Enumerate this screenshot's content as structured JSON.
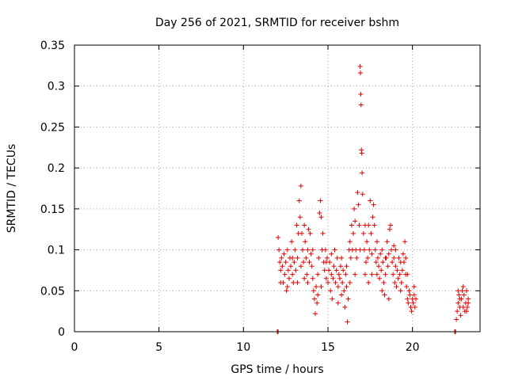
{
  "chart_data": {
    "type": "scatter",
    "title": "Day 256 of 2021, SRMTID for receiver bshm",
    "xlabel": "GPS time / hours",
    "ylabel": "SRMTID / TECUs",
    "xlim": [
      0,
      24
    ],
    "ylim": [
      0,
      0.35
    ],
    "xticks": [
      0,
      5,
      10,
      15,
      20
    ],
    "xtick_labels": [
      "0",
      "5",
      "10",
      "15",
      "20"
    ],
    "yticks": [
      0,
      0.05,
      0.1,
      0.15,
      0.2,
      0.25,
      0.3,
      0.35
    ],
    "ytick_labels": [
      "0",
      "0.05",
      "0.1",
      "0.15",
      "0.2",
      "0.25",
      "0.3",
      "0.35"
    ],
    "grid": true,
    "marker": "+",
    "color": "#e00000",
    "series": [
      {
        "name": "SRMTID",
        "points": [
          [
            12.0,
            0.0
          ],
          [
            12.05,
            0.0
          ],
          [
            22.5,
            0.0
          ],
          [
            22.55,
            0.0
          ],
          [
            12.05,
            0.115
          ],
          [
            12.1,
            0.1
          ],
          [
            12.15,
            0.085
          ],
          [
            12.2,
            0.075
          ],
          [
            12.25,
            0.09
          ],
          [
            12.3,
            0.08
          ],
          [
            12.35,
            0.06
          ],
          [
            12.4,
            0.095
          ],
          [
            12.45,
            0.07
          ],
          [
            12.5,
            0.085
          ],
          [
            12.55,
            0.05
          ],
          [
            12.6,
            0.1
          ],
          [
            12.65,
            0.075
          ],
          [
            12.7,
            0.065
          ],
          [
            12.75,
            0.09
          ],
          [
            12.8,
            0.08
          ],
          [
            12.85,
            0.11
          ],
          [
            12.9,
            0.07
          ],
          [
            12.95,
            0.06
          ],
          [
            13.0,
            0.085
          ],
          [
            13.05,
            0.1
          ],
          [
            13.1,
            0.075
          ],
          [
            13.15,
            0.13
          ],
          [
            13.2,
            0.09
          ],
          [
            13.25,
            0.12
          ],
          [
            13.3,
            0.16
          ],
          [
            13.35,
            0.14
          ],
          [
            13.4,
            0.178
          ],
          [
            13.45,
            0.12
          ],
          [
            13.5,
            0.1
          ],
          [
            13.55,
            0.085
          ],
          [
            13.6,
            0.13
          ],
          [
            13.65,
            0.11
          ],
          [
            13.7,
            0.09
          ],
          [
            13.75,
            0.07
          ],
          [
            13.8,
            0.1
          ],
          [
            13.85,
            0.125
          ],
          [
            13.9,
            0.085
          ],
          [
            13.95,
            0.12
          ],
          [
            14.0,
            0.095
          ],
          [
            14.05,
            0.08
          ],
          [
            14.1,
            0.065
          ],
          [
            14.15,
            0.05
          ],
          [
            14.2,
            0.04
          ],
          [
            14.25,
            0.022
          ],
          [
            14.3,
            0.055
          ],
          [
            14.35,
            0.035
          ],
          [
            14.4,
            0.07
          ],
          [
            14.45,
            0.09
          ],
          [
            14.5,
            0.145
          ],
          [
            14.55,
            0.16
          ],
          [
            14.6,
            0.14
          ],
          [
            14.65,
            0.1
          ],
          [
            14.7,
            0.12
          ],
          [
            14.75,
            0.085
          ],
          [
            14.8,
            0.075
          ],
          [
            14.85,
            0.1
          ],
          [
            14.9,
            0.065
          ],
          [
            14.95,
            0.09
          ],
          [
            15.0,
            0.06
          ],
          [
            15.05,
            0.075
          ],
          [
            15.1,
            0.085
          ],
          [
            15.15,
            0.05
          ],
          [
            15.2,
            0.07
          ],
          [
            15.25,
            0.04
          ],
          [
            15.3,
            0.065
          ],
          [
            15.35,
            0.08
          ],
          [
            15.4,
            0.1
          ],
          [
            15.45,
            0.06
          ],
          [
            15.5,
            0.075
          ],
          [
            15.55,
            0.09
          ],
          [
            15.6,
            0.055
          ],
          [
            15.65,
            0.07
          ],
          [
            15.7,
            0.065
          ],
          [
            15.75,
            0.08
          ],
          [
            15.8,
            0.045
          ],
          [
            15.85,
            0.06
          ],
          [
            15.9,
            0.075
          ],
          [
            15.95,
            0.05
          ],
          [
            16.0,
            0.03
          ],
          [
            16.05,
            0.07
          ],
          [
            16.1,
            0.055
          ],
          [
            16.15,
            0.012
          ],
          [
            16.2,
            0.04
          ],
          [
            16.25,
            0.1
          ],
          [
            16.3,
            0.11
          ],
          [
            16.35,
            0.09
          ],
          [
            16.4,
            0.13
          ],
          [
            16.45,
            0.1
          ],
          [
            16.5,
            0.12
          ],
          [
            16.55,
            0.15
          ],
          [
            16.6,
            0.135
          ],
          [
            16.65,
            0.1
          ],
          [
            16.7,
            0.09
          ],
          [
            16.75,
            0.17
          ],
          [
            16.8,
            0.155
          ],
          [
            16.85,
            0.13
          ],
          [
            16.9,
            0.324
          ],
          [
            16.92,
            0.316
          ],
          [
            16.94,
            0.29
          ],
          [
            16.96,
            0.277
          ],
          [
            16.98,
            0.222
          ],
          [
            17.0,
            0.218
          ],
          [
            17.02,
            0.194
          ],
          [
            17.05,
            0.168
          ],
          [
            17.1,
            0.12
          ],
          [
            17.15,
            0.1
          ],
          [
            17.2,
            0.07
          ],
          [
            17.25,
            0.085
          ],
          [
            17.3,
            0.11
          ],
          [
            17.35,
            0.09
          ],
          [
            17.4,
            0.13
          ],
          [
            17.45,
            0.1
          ],
          [
            17.5,
            0.16
          ],
          [
            17.55,
            0.12
          ],
          [
            17.6,
            0.095
          ],
          [
            17.65,
            0.14
          ],
          [
            17.7,
            0.155
          ],
          [
            17.75,
            0.13
          ],
          [
            17.8,
            0.1
          ],
          [
            17.85,
            0.085
          ],
          [
            17.9,
            0.07
          ],
          [
            17.95,
            0.09
          ],
          [
            18.0,
            0.08
          ],
          [
            18.05,
            0.065
          ],
          [
            18.1,
            0.095
          ],
          [
            18.15,
            0.075
          ],
          [
            18.2,
            0.1
          ],
          [
            18.25,
            0.085
          ],
          [
            18.3,
            0.06
          ],
          [
            18.35,
            0.045
          ],
          [
            18.4,
            0.07
          ],
          [
            18.45,
            0.09
          ],
          [
            18.5,
            0.11
          ],
          [
            18.55,
            0.08
          ],
          [
            18.6,
            0.095
          ],
          [
            18.65,
            0.125
          ],
          [
            18.7,
            0.13
          ],
          [
            18.75,
            0.1
          ],
          [
            18.8,
            0.085
          ],
          [
            18.85,
            0.07
          ],
          [
            18.9,
            0.09
          ],
          [
            18.95,
            0.06
          ],
          [
            19.0,
            0.08
          ],
          [
            19.05,
            0.055
          ],
          [
            19.1,
            0.075
          ],
          [
            19.15,
            0.065
          ],
          [
            19.2,
            0.09
          ],
          [
            19.25,
            0.07
          ],
          [
            19.3,
            0.05
          ],
          [
            19.35,
            0.06
          ],
          [
            19.4,
            0.075
          ],
          [
            19.45,
            0.095
          ],
          [
            19.5,
            0.085
          ],
          [
            19.55,
            0.11
          ],
          [
            19.6,
            0.07
          ],
          [
            19.65,
            0.055
          ],
          [
            19.7,
            0.04
          ],
          [
            19.75,
            0.035
          ],
          [
            19.8,
            0.05
          ],
          [
            19.85,
            0.045
          ],
          [
            19.9,
            0.03
          ],
          [
            19.95,
            0.025
          ],
          [
            20.0,
            0.04
          ],
          [
            20.05,
            0.035
          ],
          [
            20.1,
            0.045
          ],
          [
            20.15,
            0.03
          ],
          [
            20.2,
            0.04
          ],
          [
            22.6,
            0.015
          ],
          [
            22.65,
            0.025
          ],
          [
            22.7,
            0.035
          ],
          [
            22.75,
            0.045
          ],
          [
            22.8,
            0.03
          ],
          [
            22.85,
            0.02
          ],
          [
            22.9,
            0.04
          ],
          [
            22.95,
            0.05
          ],
          [
            23.0,
            0.03
          ],
          [
            23.05,
            0.045
          ],
          [
            23.1,
            0.025
          ],
          [
            23.15,
            0.035
          ],
          [
            23.2,
            0.05
          ],
          [
            23.25,
            0.03
          ],
          [
            23.3,
            0.04
          ],
          [
            13.2,
            0.06
          ],
          [
            13.6,
            0.065
          ],
          [
            14.1,
            0.1
          ],
          [
            14.4,
            0.045
          ],
          [
            15.2,
            0.095
          ],
          [
            15.6,
            0.035
          ],
          [
            16.1,
            0.08
          ],
          [
            16.3,
            0.06
          ],
          [
            16.6,
            0.07
          ],
          [
            17.2,
            0.13
          ],
          [
            17.4,
            0.06
          ],
          [
            17.9,
            0.11
          ],
          [
            18.2,
            0.05
          ],
          [
            18.6,
            0.04
          ],
          [
            19.0,
            0.1
          ],
          [
            19.3,
            0.085
          ],
          [
            19.7,
            0.07
          ],
          [
            12.2,
            0.06
          ],
          [
            12.6,
            0.055
          ],
          [
            12.9,
            0.09
          ],
          [
            13.4,
            0.08
          ],
          [
            13.8,
            0.06
          ],
          [
            14.6,
            0.055
          ],
          [
            14.9,
            0.085
          ],
          [
            15.8,
            0.09
          ],
          [
            16.9,
            0.1
          ],
          [
            17.6,
            0.07
          ],
          [
            18.4,
            0.09
          ],
          [
            18.9,
            0.105
          ],
          [
            19.6,
            0.09
          ],
          [
            20.1,
            0.055
          ],
          [
            22.7,
            0.05
          ],
          [
            23.0,
            0.055
          ],
          [
            23.2,
            0.025
          ],
          [
            23.3,
            0.035
          ],
          [
            22.8,
            0.04
          ]
        ]
      }
    ]
  }
}
